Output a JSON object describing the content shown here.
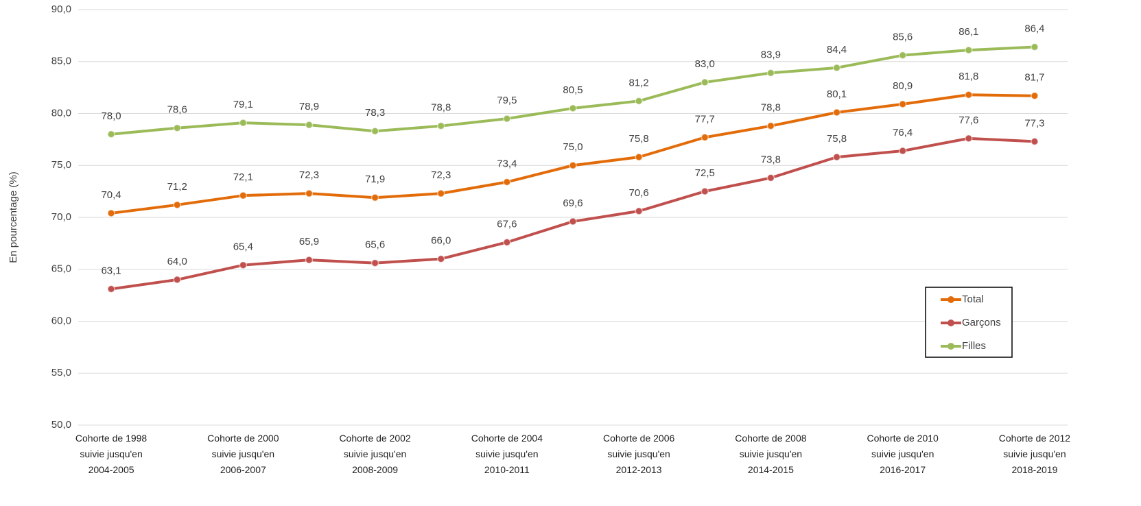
{
  "chart_data": {
    "type": "line",
    "y_label": "En pourcentage (%)",
    "categories": [
      "Cohorte de 1998\nsuivie jusqu'en\n2004-2005",
      null,
      "Cohorte de 2000\nsuivie jusqu'en\n2006-2007",
      null,
      "Cohorte de 2002\nsuivie jusqu'en\n2008-2009",
      null,
      "Cohorte de 2004\nsuivie jusqu'en\n2010-2011",
      null,
      "Cohorte de 2006\nsuivie jusqu'en\n2012-2013",
      null,
      "Cohorte de 2008\nsuivie jusqu'en\n2014-2015",
      null,
      "Cohorte de 2010\nsuivie jusqu'en\n2016-2017",
      null,
      "Cohorte de 2012\nsuivie jusqu'en\n2018-2019"
    ],
    "series": [
      {
        "name": "Total",
        "color": "#e36c0a",
        "values": [
          70.4,
          71.2,
          72.1,
          72.3,
          71.9,
          72.3,
          73.4,
          75.0,
          75.8,
          77.7,
          78.8,
          80.1,
          80.9,
          81.8,
          81.7
        ],
        "value_labels": [
          "70,4",
          "71,2",
          "72,1",
          "72,3",
          "71,9",
          "72,3",
          "73,4",
          "75,0",
          "75,8",
          "77,7",
          "78,8",
          "80,1",
          "80,9",
          "81,8",
          "81,7"
        ]
      },
      {
        "name": "Garçons",
        "color": "#c0504d",
        "values": [
          63.1,
          64.0,
          65.4,
          65.9,
          65.6,
          66.0,
          67.6,
          69.6,
          70.6,
          72.5,
          73.8,
          75.8,
          76.4,
          77.6,
          77.3
        ],
        "value_labels": [
          "63,1",
          "64,0",
          "65,4",
          "65,9",
          "65,6",
          "66,0",
          "67,6",
          "69,6",
          "70,6",
          "72,5",
          "73,8",
          "75,8",
          "76,4",
          "77,6",
          "77,3"
        ]
      },
      {
        "name": "Filles",
        "color": "#9bbb59",
        "values": [
          78.0,
          78.6,
          79.1,
          78.9,
          78.3,
          78.8,
          79.5,
          80.5,
          81.2,
          83.0,
          83.9,
          84.4,
          85.6,
          86.1,
          86.4
        ],
        "value_labels": [
          "78,0",
          "78,6",
          "79,1",
          "78,9",
          "78,3",
          "78,8",
          "79,5",
          "80,5",
          "81,2",
          "83,0",
          "83,9",
          "84,4",
          "85,6",
          "86,1",
          "86,4"
        ]
      }
    ],
    "ylim": [
      50,
      90
    ],
    "yticks": [
      {
        "value": 50,
        "label": "50,0"
      },
      {
        "value": 55,
        "label": "55,0"
      },
      {
        "value": 60,
        "label": "60,0"
      },
      {
        "value": 65,
        "label": "65,0"
      },
      {
        "value": 70,
        "label": "70,0"
      },
      {
        "value": 75,
        "label": "75,0"
      },
      {
        "value": 80,
        "label": "80,0"
      },
      {
        "value": 85,
        "label": "85,0"
      },
      {
        "value": 90,
        "label": "90,0"
      }
    ],
    "grid": true,
    "legend": "lower right"
  }
}
